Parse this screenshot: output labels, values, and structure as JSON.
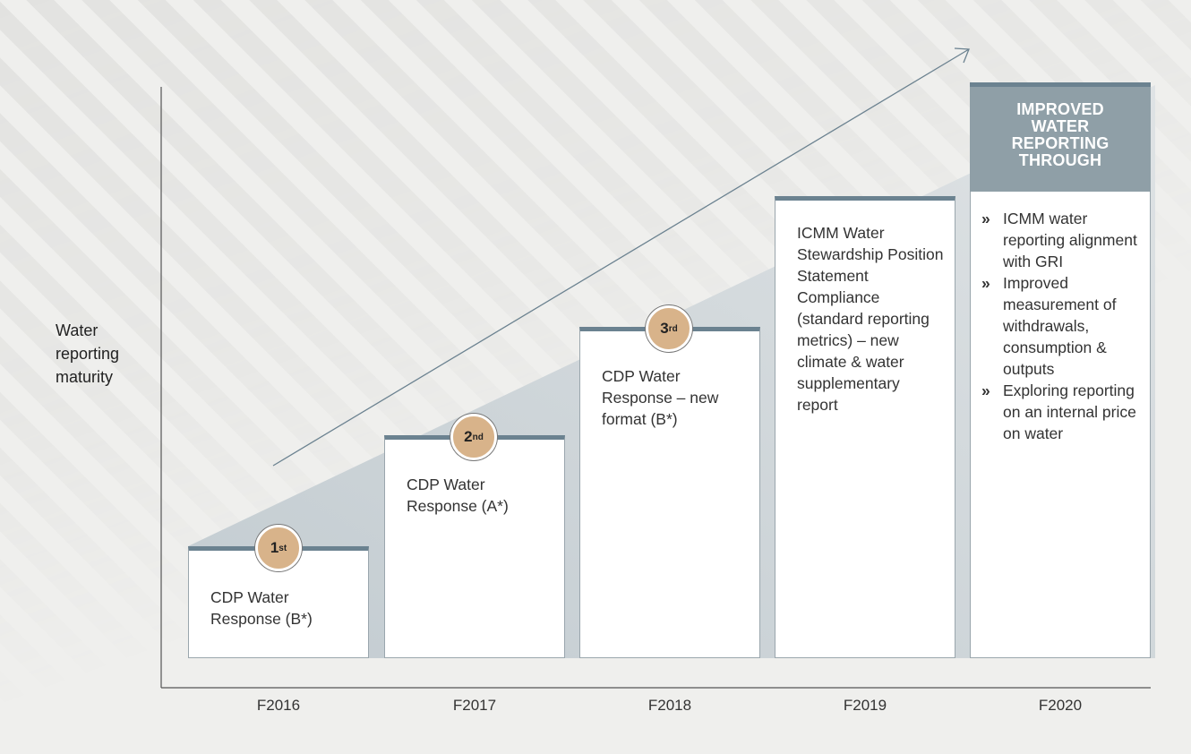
{
  "y_axis_label": "Water reporting maturity",
  "columns": [
    {
      "year": "F2016",
      "rank": "1",
      "rank_suffix": "st",
      "text": "CDP Water Response (B*)"
    },
    {
      "year": "F2017",
      "rank": "2",
      "rank_suffix": "nd",
      "text": "CDP Water Response (A*)"
    },
    {
      "year": "F2018",
      "rank": "3",
      "rank_suffix": "rd",
      "text": "CDP Water Response – new format (B*)"
    },
    {
      "year": "F2019",
      "text": "ICMM Water Stewardship Position Statement Compliance (standard reporting metrics) – new climate & water supplementary report"
    },
    {
      "year": "F2020",
      "header": "IMPROVED WATER REPORTING THROUGH",
      "bullets": [
        "ICMM water reporting alignment with GRI",
        "Improved measurement of withdrawals, consumption & outputs",
        "Exploring reporting on an internal price on water"
      ]
    }
  ]
}
